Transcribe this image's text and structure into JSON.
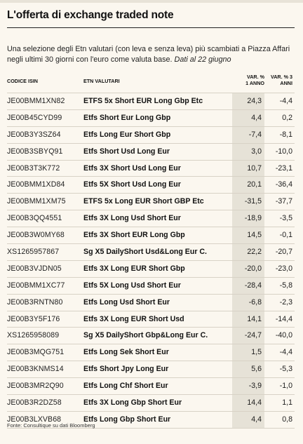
{
  "title": "L'offerta di exchange traded note",
  "intro": {
    "text": "Una selezione degli Etn valutari (con leva e senza leva) più scambiati a Piazza Affari negli ultimi 30 giorni con l'euro come valuta base.",
    "italic": "Dati al 22 giugno"
  },
  "headers": {
    "isin": "CODICE ISIN",
    "etn": "ETN VALUTARI",
    "var1_line1": "VAR. %",
    "var1_line2": "1 ANNO",
    "var3_line1": "VAR. % 3",
    "var3_line2": "ANNI"
  },
  "rows": [
    {
      "isin": "JE00BMM1XN82",
      "name": "ETFS 5x Short EUR Long Gbp Etc",
      "var1": "24,3",
      "var3": "-4,4"
    },
    {
      "isin": "JE00B45CYD99",
      "name": "Etfs Short Eur Long Gbp",
      "var1": "4,4",
      "var3": "0,2"
    },
    {
      "isin": "JE00B3Y3SZ64",
      "name": "Etfs Long Eur Short Gbp",
      "var1": "-7,4",
      "var3": "-8,1"
    },
    {
      "isin": "JE00B3SBYQ91",
      "name": "Etfs Short Usd Long Eur",
      "var1": "3,0",
      "var3": "-10,0"
    },
    {
      "isin": "JE00B3T3K772",
      "name": "Etfs 3X Short Usd Long Eur",
      "var1": "10,7",
      "var3": "-23,1"
    },
    {
      "isin": "JE00BMM1XD84",
      "name": "Etfs 5X Short Usd Long Eur",
      "var1": "20,1",
      "var3": "-36,4"
    },
    {
      "isin": "JE00BMM1XM75",
      "name": "ETFS 5x Long EUR Short GBP Etc",
      "var1": "-31,5",
      "var3": "-37,7"
    },
    {
      "isin": "JE00B3QQ4551",
      "name": "Etfs 3X Long Usd Short Eur",
      "var1": "-18,9",
      "var3": "-3,5"
    },
    {
      "isin": "JE00B3W0MY68",
      "name": "Etfs 3X Short EUR Long Gbp",
      "var1": "14,5",
      "var3": "-0,1"
    },
    {
      "isin": "XS1265957867",
      "name": "Sg X5 DailyShort Usd&Long Eur C.",
      "var1": "22,2",
      "var3": "-20,7"
    },
    {
      "isin": "JE00B3VJDN05",
      "name": "Etfs 3X Long EUR Short Gbp",
      "var1": "-20,0",
      "var3": "-23,0"
    },
    {
      "isin": "JE00BMM1XC77",
      "name": "Etfs 5X Long Usd Short Eur",
      "var1": "-28,4",
      "var3": "-5,8"
    },
    {
      "isin": "JE00B3RNTN80",
      "name": "Etfs Long Usd Short Eur",
      "var1": "-6,8",
      "var3": "-2,3"
    },
    {
      "isin": "JE00B3Y5F176",
      "name": "Etfs 3X Long EUR Short Usd",
      "var1": "14,1",
      "var3": "-14,4"
    },
    {
      "isin": "XS1265958089",
      "name": "Sg X5 DailyShort Gbp&Long Eur C.",
      "var1": "-24,7",
      "var3": "-40,0"
    },
    {
      "isin": "JE00B3MQG751",
      "name": "Etfs Long Sek Short Eur",
      "var1": "1,5",
      "var3": "-4,4"
    },
    {
      "isin": "JE00B3KNMS14",
      "name": "Etfs Short Jpy Long Eur",
      "var1": "5,6",
      "var3": "-5,3"
    },
    {
      "isin": "JE00B3MR2Q90",
      "name": "Etfs Long Chf Short Eur",
      "var1": "-3,9",
      "var3": "-1,0"
    },
    {
      "isin": "JE00B3R2DZ58",
      "name": "Etfs 3X Long Gbp Short Eur",
      "var1": "14,4",
      "var3": "1,1"
    },
    {
      "isin": "JE00B3LXVB68",
      "name": "Etfs Long Gbp Short Eur",
      "var1": "4,4",
      "var3": "0,8"
    }
  ],
  "source": "Fonte: Consultique su dati Bloomberg"
}
